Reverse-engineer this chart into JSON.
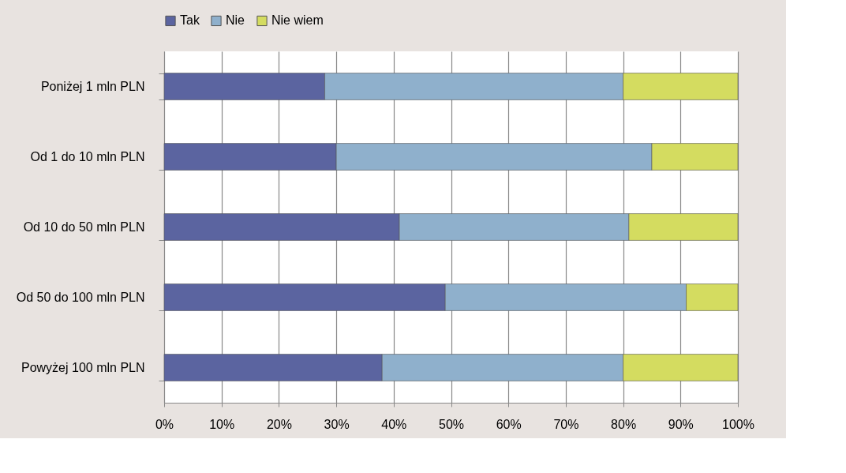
{
  "chart_data": {
    "type": "bar",
    "orientation": "horizontal",
    "stacked": true,
    "categories": [
      "Poniżej 1 mln PLN",
      "Od 1 do 10 mln PLN",
      "Od 10 do 50 mln PLN",
      "Od 50 do 100 mln PLN",
      "Powyżej 100 mln PLN"
    ],
    "series": [
      {
        "name": "Tak",
        "color": "#5b64a0",
        "values": [
          28,
          30,
          41,
          49,
          38
        ]
      },
      {
        "name": "Nie",
        "color": "#8fb0cc",
        "values": [
          52,
          55,
          40,
          42,
          42
        ]
      },
      {
        "name": "Nie wiem",
        "color": "#d4dc60",
        "values": [
          20,
          15,
          19,
          9,
          20
        ]
      }
    ],
    "xlim": [
      0,
      100
    ],
    "xticks": [
      {
        "value": 0,
        "label": "0%"
      },
      {
        "value": 10,
        "label": "10%"
      },
      {
        "value": 20,
        "label": "20%"
      },
      {
        "value": 30,
        "label": "30%"
      },
      {
        "value": 40,
        "label": "40%"
      },
      {
        "value": 50,
        "label": "50%"
      },
      {
        "value": 60,
        "label": "60%"
      },
      {
        "value": 70,
        "label": "70%"
      },
      {
        "value": 80,
        "label": "80%"
      },
      {
        "value": 90,
        "label": "90%"
      },
      {
        "value": 100,
        "label": "100%"
      }
    ],
    "grid": "x",
    "legend": "top"
  }
}
